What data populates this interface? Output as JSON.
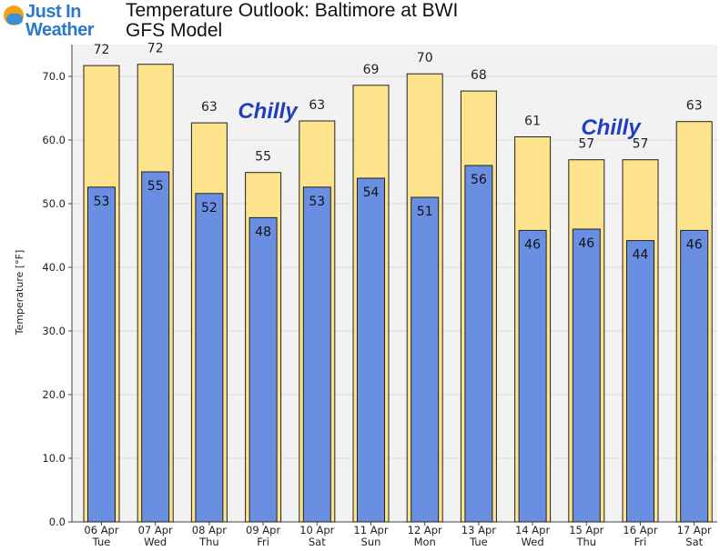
{
  "header": {
    "logo_line1": "Just In",
    "logo_line2": "Weather",
    "title_line1": "Temperature Outlook: Baltimore at BWI",
    "title_line2": "GFS Model"
  },
  "annotations": [
    "Chilly",
    "Chilly"
  ],
  "colors": {
    "high_bar": "#fce38c",
    "low_bar": "#6a8fe2",
    "bar_stroke": "#222222",
    "plot_bg": "#f2f2f2",
    "annotation": "#1f3fbf"
  },
  "chart_data": {
    "type": "bar",
    "ylabel": "Temperature [°F]",
    "ylim": [
      0,
      75
    ],
    "yticks": [
      "0.0",
      "10.0",
      "20.0",
      "30.0",
      "40.0",
      "50.0",
      "60.0",
      "70.0"
    ],
    "grid": true,
    "categories": [
      {
        "date": "06 Apr",
        "day": "Tue"
      },
      {
        "date": "07 Apr",
        "day": "Wed"
      },
      {
        "date": "08 Apr",
        "day": "Thu"
      },
      {
        "date": "09 Apr",
        "day": "Fri"
      },
      {
        "date": "10 Apr",
        "day": "Sat"
      },
      {
        "date": "11 Apr",
        "day": "Sun"
      },
      {
        "date": "12 Apr",
        "day": "Mon"
      },
      {
        "date": "13 Apr",
        "day": "Tue"
      },
      {
        "date": "14 Apr",
        "day": "Wed"
      },
      {
        "date": "15 Apr",
        "day": "Thu"
      },
      {
        "date": "16 Apr",
        "day": "Fri"
      },
      {
        "date": "17 Apr",
        "day": "Sat"
      }
    ],
    "series": [
      {
        "values": [
          71.7,
          71.9,
          62.7,
          54.9,
          63.0,
          68.6,
          70.4,
          67.7,
          60.5,
          56.9,
          56.9,
          62.9
        ],
        "labels": [
          "72",
          "72",
          "63",
          "55",
          "63",
          "69",
          "70",
          "68",
          "61",
          "57",
          "57",
          "63"
        ]
      },
      {
        "values": [
          52.6,
          55.0,
          51.6,
          47.8,
          52.6,
          54.0,
          51.0,
          56.0,
          45.8,
          46.0,
          44.2,
          45.8
        ],
        "labels": [
          "53",
          "55",
          "52",
          "48",
          "53",
          "54",
          "51",
          "56",
          "46",
          "46",
          "44",
          "46"
        ]
      }
    ]
  }
}
